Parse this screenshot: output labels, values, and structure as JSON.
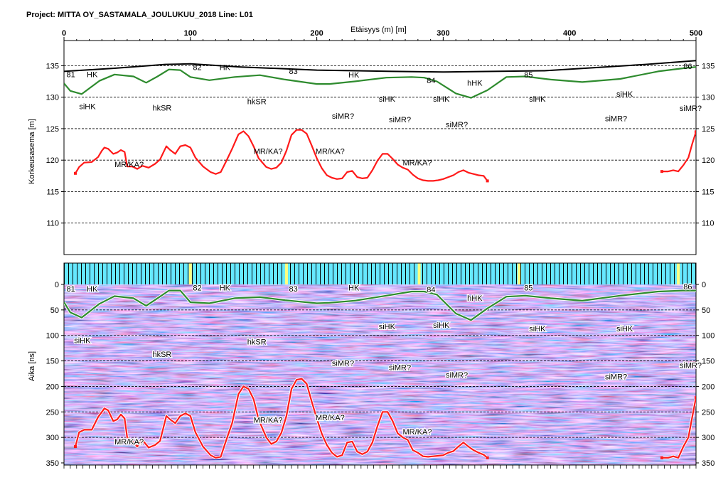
{
  "header": {
    "project_title": "Project: MITTA OY_SASTAMALA_JOULUKUU_2018  Line: L01",
    "x_axis_title": "Etäisyys (m) [m]"
  },
  "colors": {
    "surface": "#000000",
    "bedrock_top": "#2e8b2e",
    "bedrock_interp": "#ff1a1a",
    "radar_pink": "#f060d0",
    "radar_blue": "#4060ff",
    "radar_cyan": "#80f0ff",
    "marker_yellow": "#ffff80"
  },
  "chart_data": [
    {
      "type": "line",
      "title": "",
      "xlabel": "Etäisyys (m) [m]",
      "ylabel": "Korkeusasema [m]",
      "xlim": [
        0,
        500
      ],
      "ylim": [
        105,
        139
      ],
      "x_ticks": [
        0,
        100,
        200,
        300,
        400,
        500
      ],
      "y_ticks": [
        110,
        115,
        120,
        125,
        130,
        135
      ],
      "grid": "dashed-horizontal",
      "series": [
        {
          "key": "surface",
          "x": [
            0,
            40,
            80,
            100,
            140,
            200,
            260,
            300,
            340,
            380,
            420,
            460,
            500
          ],
          "y": [
            134.1,
            134.6,
            135.2,
            135.3,
            134.8,
            134.3,
            134.1,
            134.0,
            134.1,
            134.2,
            134.7,
            135.2,
            135.8
          ]
        },
        {
          "key": "bedrock_top",
          "x": [
            0,
            5,
            14,
            28,
            40,
            55,
            65,
            74,
            83,
            92,
            100,
            115,
            135,
            155,
            175,
            200,
            210,
            230,
            255,
            275,
            285,
            295,
            310,
            322,
            335,
            350,
            365,
            385,
            410,
            440,
            470,
            490,
            500
          ],
          "y": [
            132.2,
            131.0,
            130.5,
            132.6,
            133.6,
            133.3,
            132.3,
            133.3,
            134.4,
            134.3,
            133.2,
            132.7,
            133.2,
            133.5,
            132.8,
            132.1,
            132.1,
            132.5,
            133.1,
            133.2,
            133.1,
            132.5,
            130.6,
            129.9,
            131.1,
            133.2,
            133.3,
            132.8,
            132.4,
            132.9,
            134.1,
            134.6,
            134.8
          ]
        },
        {
          "key": "bedrock_interp_a",
          "x": [
            9,
            12,
            16,
            22,
            27,
            30,
            32,
            35,
            39,
            42,
            45,
            48,
            50,
            54,
            58,
            62,
            67,
            72,
            76,
            81,
            84,
            88,
            92,
            96,
            100,
            104,
            110,
            116,
            120,
            124,
            128,
            133,
            138,
            142,
            146,
            150,
            154,
            160,
            164,
            168,
            172,
            176,
            180,
            184,
            188,
            192,
            196,
            200,
            204,
            208,
            212,
            216,
            220,
            224,
            228,
            232,
            236,
            240,
            244,
            248,
            252,
            256,
            260,
            264,
            268,
            272,
            276,
            280,
            284,
            288,
            292,
            296,
            300,
            304,
            308,
            312,
            316,
            320,
            324,
            328,
            332,
            335
          ],
          "y": [
            117.9,
            118.9,
            119.6,
            119.7,
            120.5,
            121.5,
            122.0,
            121.8,
            121.0,
            121.2,
            121.6,
            121.3,
            119.0,
            119.0,
            118.6,
            119.1,
            118.8,
            119.4,
            120.1,
            122.2,
            121.6,
            121.0,
            122.2,
            122.4,
            122.0,
            120.4,
            119.0,
            118.1,
            117.8,
            118.1,
            119.7,
            121.8,
            124.1,
            124.6,
            123.8,
            122.2,
            120.3,
            118.9,
            118.6,
            118.8,
            119.6,
            121.5,
            124.0,
            124.8,
            124.8,
            124.2,
            122.3,
            120.3,
            118.7,
            117.6,
            117.2,
            117.0,
            117.1,
            118.1,
            118.3,
            117.3,
            117.1,
            117.2,
            118.4,
            119.9,
            121.0,
            121.0,
            120.2,
            119.3,
            118.8,
            118.5,
            117.7,
            117.1,
            116.8,
            116.7,
            116.7,
            116.8,
            117.0,
            117.3,
            117.6,
            118.1,
            118.4,
            118.0,
            117.8,
            117.6,
            117.5,
            116.7
          ]
        },
        {
          "key": "bedrock_interp_b",
          "x": [
            473,
            478,
            482,
            486,
            490,
            494,
            497,
            500
          ],
          "y": [
            118.2,
            118.2,
            118.4,
            118.2,
            119.2,
            120.4,
            122.6,
            124.5
          ]
        }
      ],
      "annotations": [
        {
          "text": "81",
          "x": 2,
          "y": 133.2
        },
        {
          "text": "HK",
          "x": 18,
          "y": 133.2
        },
        {
          "text": "82",
          "x": 102,
          "y": 134.3
        },
        {
          "text": "HK",
          "x": 123,
          "y": 134.3
        },
        {
          "text": "83",
          "x": 178,
          "y": 133.7
        },
        {
          "text": "HK",
          "x": 225,
          "y": 133.1
        },
        {
          "text": "84",
          "x": 287,
          "y": 132.2
        },
        {
          "text": "hHK",
          "x": 319,
          "y": 131.8
        },
        {
          "text": "85",
          "x": 364,
          "y": 133.1
        },
        {
          "text": "86",
          "x": 490,
          "y": 134.5
        },
        {
          "text": "siHK",
          "x": 12,
          "y": 128.1
        },
        {
          "text": "hkSR",
          "x": 70,
          "y": 127.9
        },
        {
          "text": "hkSR",
          "x": 145,
          "y": 128.9
        },
        {
          "text": "siMR?",
          "x": 212,
          "y": 126.6
        },
        {
          "text": "siHK",
          "x": 249,
          "y": 129.3
        },
        {
          "text": "siMR?",
          "x": 257,
          "y": 126.0
        },
        {
          "text": "siHK",
          "x": 292,
          "y": 129.3
        },
        {
          "text": "siMR?",
          "x": 302,
          "y": 125.2
        },
        {
          "text": "siHK",
          "x": 368,
          "y": 129.3
        },
        {
          "text": "siHK",
          "x": 437,
          "y": 130.1
        },
        {
          "text": "siMR?",
          "x": 428,
          "y": 126.2
        },
        {
          "text": "siMR?",
          "x": 487,
          "y": 127.8
        },
        {
          "text": "MR/KA?",
          "x": 40,
          "y": 118.9
        },
        {
          "text": "MR/KA?",
          "x": 150,
          "y": 121.0
        },
        {
          "text": "MR/KA?",
          "x": 199,
          "y": 121.0
        },
        {
          "text": "MR/KA?",
          "x": 268,
          "y": 119.2
        }
      ]
    },
    {
      "type": "heatmap",
      "title": "",
      "xlabel": "Etäisyys (m) [m]",
      "ylabel": "Aika [ns]",
      "xlim": [
        0,
        500
      ],
      "ylim": [
        350,
        0
      ],
      "y_ticks": [
        0,
        50,
        100,
        150,
        200,
        250,
        300,
        350
      ],
      "grid": "dashed-horizontal",
      "highlighted_markers": [
        100,
        176,
        281,
        360,
        486
      ],
      "series": [
        {
          "key": "bedrock_top",
          "x": [
            0,
            5,
            14,
            28,
            40,
            55,
            65,
            74,
            83,
            92,
            100,
            115,
            135,
            155,
            175,
            200,
            210,
            230,
            255,
            275,
            285,
            295,
            310,
            322,
            335,
            350,
            365,
            385,
            410,
            440,
            470,
            490,
            500
          ],
          "y": [
            35,
            55,
            65,
            38,
            23,
            27,
            42,
            27,
            12,
            12,
            35,
            37,
            27,
            25,
            31,
            37,
            36,
            32,
            22,
            14,
            14,
            20,
            57,
            70,
            47,
            24,
            22,
            27,
            32,
            22,
            14,
            12,
            12
          ]
        },
        {
          "key": "bedrock_interp_a",
          "x": [
            9,
            12,
            16,
            22,
            27,
            30,
            32,
            35,
            39,
            42,
            45,
            48,
            50,
            54,
            58,
            62,
            67,
            72,
            76,
            81,
            84,
            88,
            92,
            96,
            100,
            104,
            110,
            116,
            120,
            124,
            128,
            133,
            138,
            142,
            146,
            150,
            154,
            160,
            164,
            168,
            172,
            176,
            180,
            184,
            188,
            192,
            196,
            200,
            204,
            208,
            212,
            216,
            220,
            224,
            228,
            232,
            236,
            240,
            244,
            248,
            252,
            256,
            260,
            264,
            268,
            272,
            276,
            280,
            284,
            288,
            292,
            296,
            300,
            304,
            308,
            312,
            316,
            320,
            324,
            328,
            332,
            335
          ],
          "y": [
            318,
            290,
            285,
            285,
            260,
            250,
            243,
            247,
            268,
            265,
            255,
            263,
            300,
            308,
            318,
            305,
            320,
            315,
            307,
            258,
            265,
            272,
            258,
            253,
            258,
            290,
            318,
            335,
            340,
            338,
            308,
            272,
            215,
            200,
            205,
            225,
            265,
            300,
            313,
            308,
            291,
            258,
            205,
            187,
            185,
            195,
            230,
            263,
            293,
            315,
            330,
            338,
            335,
            310,
            308,
            328,
            333,
            328,
            310,
            278,
            250,
            250,
            268,
            292,
            300,
            305,
            325,
            330,
            337,
            338,
            337,
            336,
            335,
            330,
            327,
            318,
            310,
            318,
            325,
            330,
            334,
            340
          ]
        },
        {
          "key": "bedrock_interp_b",
          "x": [
            473,
            478,
            482,
            486,
            490,
            494,
            497,
            500
          ],
          "y": [
            340,
            340,
            337,
            340,
            318,
            300,
            260,
            222
          ]
        }
      ],
      "annotations": [
        {
          "text": "81",
          "x": 2,
          "y": 14
        },
        {
          "text": "HK",
          "x": 18,
          "y": 14
        },
        {
          "text": "82",
          "x": 102,
          "y": 12
        },
        {
          "text": "HK",
          "x": 123,
          "y": 12
        },
        {
          "text": "83",
          "x": 178,
          "y": 14
        },
        {
          "text": "HK",
          "x": 225,
          "y": 12
        },
        {
          "text": "84",
          "x": 287,
          "y": 15
        },
        {
          "text": "hHK",
          "x": 319,
          "y": 32
        },
        {
          "text": "85",
          "x": 364,
          "y": 12
        },
        {
          "text": "86",
          "x": 490,
          "y": 10
        },
        {
          "text": "siHK",
          "x": 8,
          "y": 115
        },
        {
          "text": "hkSR",
          "x": 70,
          "y": 142
        },
        {
          "text": "hkSR",
          "x": 145,
          "y": 118
        },
        {
          "text": "siMR?",
          "x": 212,
          "y": 160
        },
        {
          "text": "siHK",
          "x": 249,
          "y": 88
        },
        {
          "text": "siMR?",
          "x": 257,
          "y": 168
        },
        {
          "text": "siHK",
          "x": 292,
          "y": 85
        },
        {
          "text": "siMR?",
          "x": 302,
          "y": 183
        },
        {
          "text": "siHK",
          "x": 368,
          "y": 92
        },
        {
          "text": "siHK",
          "x": 437,
          "y": 92
        },
        {
          "text": "siMR?",
          "x": 428,
          "y": 186
        },
        {
          "text": "siMR?",
          "x": 487,
          "y": 164
        },
        {
          "text": "MR/KA?",
          "x": 40,
          "y": 314
        },
        {
          "text": "MR/KA?",
          "x": 150,
          "y": 271
        },
        {
          "text": "MR/KA?",
          "x": 199,
          "y": 266
        },
        {
          "text": "MR/KA?",
          "x": 268,
          "y": 294
        }
      ]
    }
  ]
}
